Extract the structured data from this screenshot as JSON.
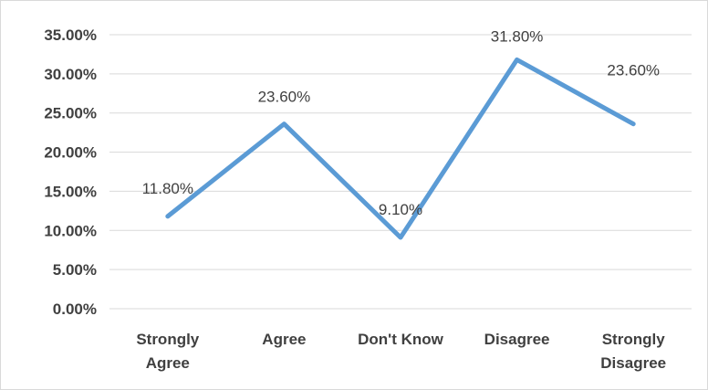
{
  "chart_data": {
    "type": "line",
    "title": "",
    "xlabel": "",
    "ylabel": "",
    "categories": [
      "Strongly Agree",
      "Agree",
      "Don't Know",
      "Disagree",
      "Strongly Disagree"
    ],
    "category_lines": [
      [
        "Strongly",
        "Agree"
      ],
      [
        "Agree"
      ],
      [
        "Don't Know"
      ],
      [
        "Disagree"
      ],
      [
        "Strongly",
        "Disagree"
      ]
    ],
    "series": [
      {
        "values": [
          11.8,
          23.6,
          9.1,
          31.8,
          23.6
        ],
        "color": "#5b9bd5"
      }
    ],
    "data_labels": [
      "11.80%",
      "23.60%",
      "9.10%",
      "31.80%",
      "23.60%"
    ],
    "ylim": [
      0,
      35
    ],
    "yticks": [
      0,
      5,
      10,
      15,
      20,
      25,
      30,
      35
    ],
    "ytick_labels": [
      "0.00%",
      "5.00%",
      "10.00%",
      "15.00%",
      "20.00%",
      "25.00%",
      "30.00%",
      "35.00%"
    ],
    "grid": true,
    "legend": "none",
    "gridline_color": "#d9d9d9",
    "text_color": "#404040"
  }
}
